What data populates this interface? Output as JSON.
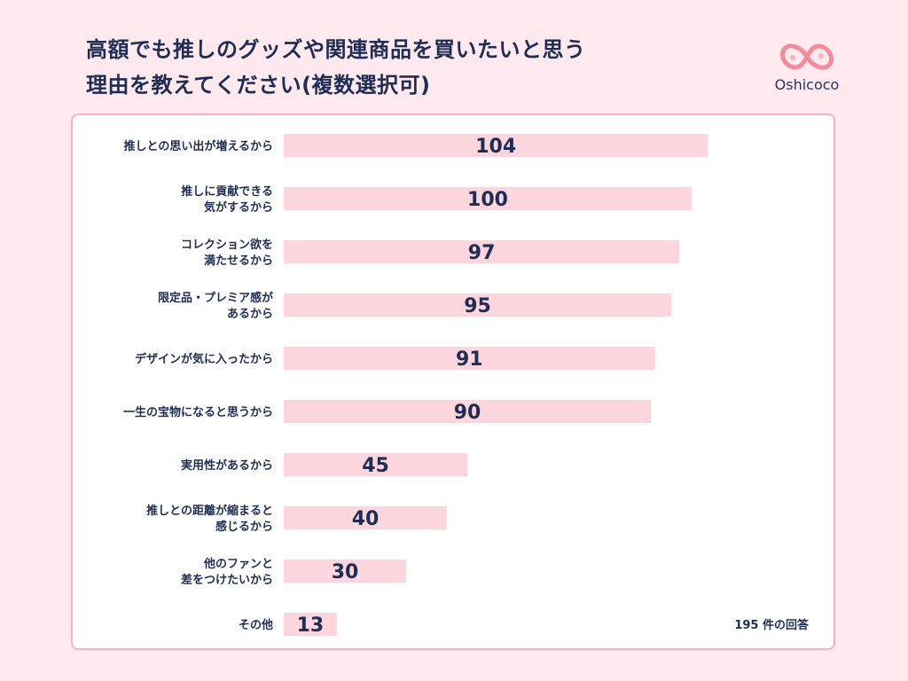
{
  "title": "高額でも推しのグッズや関連商品を買いたいと思う\n理由を教えてください(複数選択可)",
  "brand": {
    "name": "Oshicoco",
    "logo_icon": "infinity-heart-icon",
    "color": "#f28c9c"
  },
  "note": "195 件の回答",
  "colors": {
    "bar": "#fdd5dd",
    "text": "#1f2d55",
    "card_border": "#f4b3c0",
    "background": "#fde9ee"
  },
  "chart_data": {
    "type": "bar",
    "orientation": "horizontal",
    "categories": [
      [
        "推しとの思い出が増えるから"
      ],
      [
        "推しに貢献できる",
        "気がするから"
      ],
      [
        "コレクション欲を",
        "満たせるから"
      ],
      [
        "限定品・プレミア感が",
        "あるから"
      ],
      [
        "デザインが気に入ったから"
      ],
      [
        "一生の宝物になると思うから"
      ],
      [
        "実用性があるから"
      ],
      [
        "推しとの距離が縮まると",
        "感じるから"
      ],
      [
        "他のファンと",
        "差をつけたいから"
      ],
      [
        "その他"
      ]
    ],
    "values": [
      104,
      100,
      97,
      95,
      91,
      90,
      45,
      40,
      30,
      13
    ],
    "xlim": [
      0,
      130
    ],
    "grid": false,
    "legend": "none"
  }
}
